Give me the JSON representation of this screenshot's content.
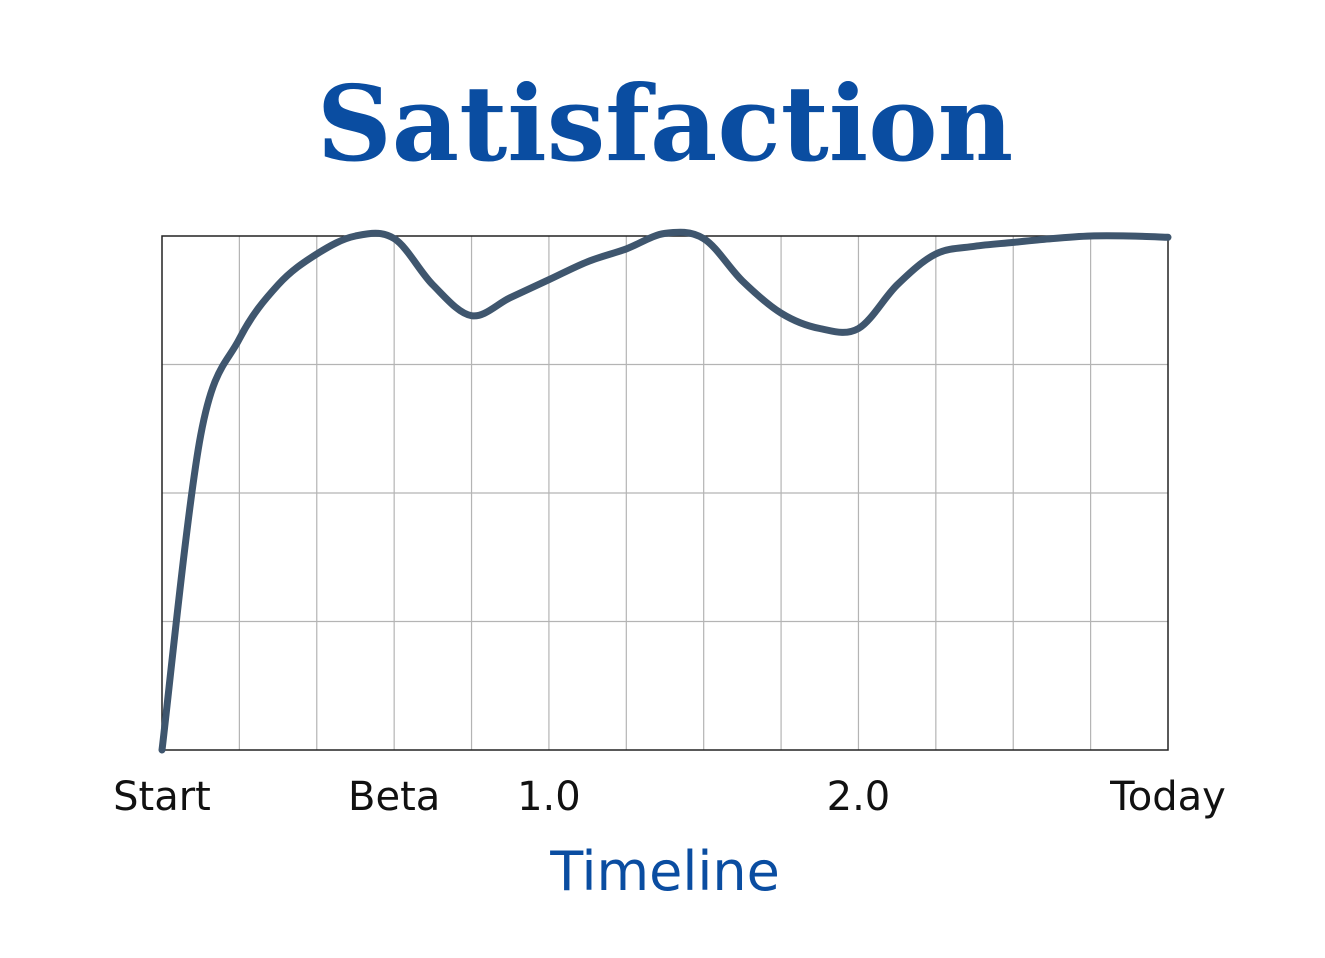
{
  "chart_data": {
    "type": "line",
    "title": "Satisfaction",
    "xlabel": "Timeline",
    "ylabel": "",
    "x_tick_labels": [
      {
        "x": 0,
        "label": "Start"
      },
      {
        "x": 3,
        "label": "Beta"
      },
      {
        "x": 5,
        "label": "1.0"
      },
      {
        "x": 9,
        "label": "2.0"
      },
      {
        "x": 13,
        "label": "Today"
      }
    ],
    "xlim": [
      0,
      13
    ],
    "ylim": [
      0,
      4
    ],
    "grid": true,
    "series": [
      {
        "x": [
          0,
          0.5,
          1,
          1.5,
          2,
          2.5,
          3,
          3.5,
          4,
          4.5,
          5,
          5.5,
          6,
          6.5,
          7,
          7.5,
          8,
          8.5,
          9,
          9.5,
          10,
          10.5,
          11,
          11.5,
          12,
          12.5,
          13
        ],
        "values": [
          0,
          2.45,
          3.2,
          3.62,
          3.86,
          4.0,
          3.98,
          3.62,
          3.38,
          3.52,
          3.66,
          3.8,
          3.9,
          4.02,
          3.98,
          3.65,
          3.4,
          3.28,
          3.28,
          3.62,
          3.86,
          3.92,
          3.95,
          3.98,
          4.0,
          4.0,
          3.99
        ]
      }
    ],
    "colors": {
      "title": "#0a4da1",
      "xlabel": "#0a4da1",
      "line": "#3f566e",
      "grid": "#b4b4b4",
      "frame": "#222222",
      "tick_text": "#111111"
    }
  }
}
